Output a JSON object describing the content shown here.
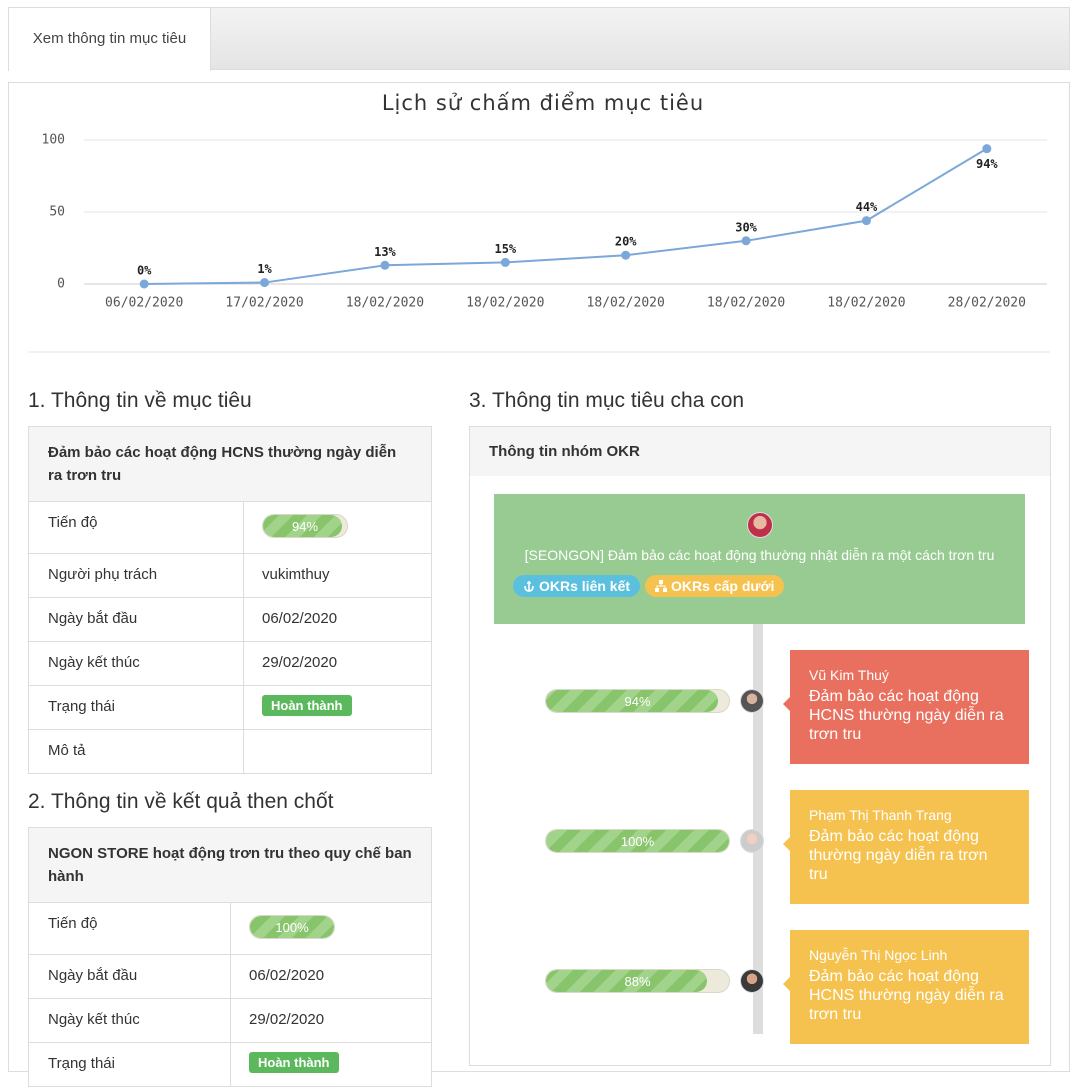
{
  "tab": {
    "label": "Xem thông tin mục tiêu"
  },
  "chart_data": {
    "type": "line",
    "title": "Lịch sử chấm điểm mục tiêu",
    "categories": [
      "06/02/2020",
      "17/02/2020",
      "18/02/2020",
      "18/02/2020",
      "18/02/2020",
      "18/02/2020",
      "18/02/2020",
      "28/02/2020"
    ],
    "values": [
      0,
      1,
      13,
      15,
      20,
      30,
      44,
      94
    ],
    "value_labels": [
      "0%",
      "1%",
      "13%",
      "15%",
      "20%",
      "30%",
      "44%",
      "94%"
    ],
    "color": "#7ba7d9",
    "ylim": [
      0,
      100
    ],
    "yticks": [
      0,
      50,
      100
    ],
    "grid": true
  },
  "goal_info": {
    "heading": "1. Thông tin về mục tiêu",
    "title": "Đảm bảo các hoạt động HCNS thường ngày diễn ra trơn tru",
    "rows": [
      {
        "label": "Tiến độ",
        "progress": 94,
        "progress_label": "94%"
      },
      {
        "label": "Người phụ trách",
        "value": "vukimthuy"
      },
      {
        "label": "Ngày bắt đầu",
        "value": "06/02/2020"
      },
      {
        "label": "Ngày kết thúc",
        "value": "29/02/2020"
      },
      {
        "label": "Trạng thái",
        "status": "Hoàn thành"
      },
      {
        "label": "Mô tả"
      }
    ]
  },
  "key_result_info": {
    "heading": "2. Thông tin về kết quả then chốt",
    "title": "NGON STORE hoạt động trơn tru theo quy chế ban hành",
    "rows": [
      {
        "label": "Tiến độ",
        "progress": 100,
        "progress_label": "100%"
      },
      {
        "label": "Ngày bắt đầu",
        "value": "06/02/2020"
      },
      {
        "label": "Ngày kết thúc",
        "value": "29/02/2020"
      },
      {
        "label": "Trạng thái",
        "status": "Hoàn thành"
      }
    ]
  },
  "okr_tree": {
    "heading": "3. Thông tin mục tiêu cha con",
    "panel_title": "Thông tin nhóm OKR",
    "parent": {
      "title": "[SEONGON] Đảm bảo các hoạt động thường nhật diễn ra một cách trơn tru",
      "buttons": [
        "OKRs liên kết",
        "OKRs cấp dưới"
      ]
    },
    "children": [
      {
        "owner": "Vũ Kim Thuý",
        "title": "Đảm bảo các hoạt động HCNS thường ngày diễn ra trơn tru",
        "progress": 94,
        "progress_label": "94%",
        "color": "#e9705f"
      },
      {
        "owner": "Phạm Thị Thanh Trang",
        "title": "Đảm bảo các hoạt động thường ngày diễn ra trơn tru",
        "progress": 100,
        "progress_label": "100%",
        "color": "#f6c24f"
      },
      {
        "owner": "Nguyễn Thị Ngọc Linh",
        "title": "Đảm bảo các hoạt động HCNS thường ngày diễn ra trơn tru",
        "progress": 88,
        "progress_label": "88%",
        "color": "#f6c24f"
      }
    ]
  }
}
